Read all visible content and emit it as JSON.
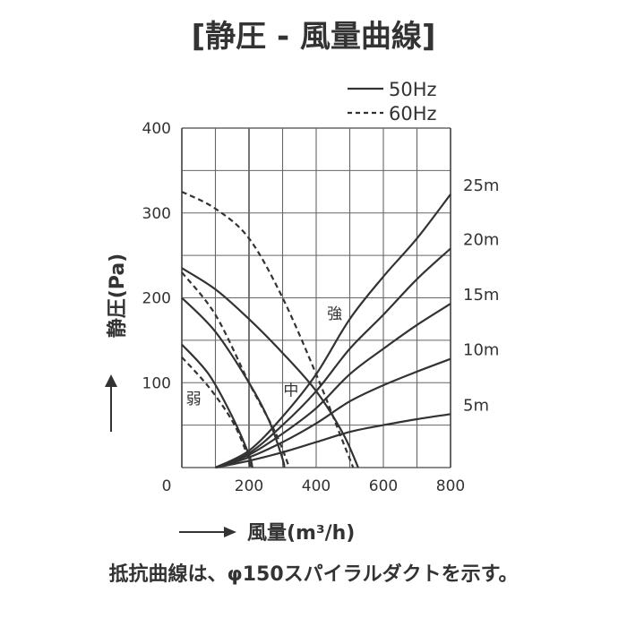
{
  "chart_data": {
    "type": "line",
    "title": "[静圧 - 風量曲線]",
    "xlabel": "風量(m³/h)",
    "ylabel": "静圧(Pa)",
    "xlim": [
      0,
      800
    ],
    "ylim": [
      0,
      400
    ],
    "x_ticks": [
      "0",
      "200",
      "400",
      "600",
      "800"
    ],
    "y_ticks": [
      "100",
      "200",
      "300",
      "400"
    ],
    "grid": true,
    "legend": {
      "position": "top-right",
      "entries": [
        {
          "label": "50Hz",
          "style": "solid"
        },
        {
          "label": "60Hz",
          "style": "dashed"
        }
      ]
    },
    "series": [
      {
        "name": "50Hz",
        "label": "強",
        "style": "solid",
        "points": [
          [
            0,
            235
          ],
          [
            100,
            210
          ],
          [
            200,
            175
          ],
          [
            300,
            135
          ],
          [
            400,
            90
          ],
          [
            480,
            40
          ],
          [
            525,
            0
          ]
        ]
      },
      {
        "name": "50Hz",
        "label": "中",
        "style": "solid",
        "points": [
          [
            0,
            200
          ],
          [
            100,
            160
          ],
          [
            200,
            100
          ],
          [
            260,
            55
          ],
          [
            300,
            10
          ],
          [
            305,
            0
          ]
        ]
      },
      {
        "name": "50Hz",
        "label": "弱",
        "style": "solid",
        "points": [
          [
            0,
            145
          ],
          [
            80,
            110
          ],
          [
            150,
            60
          ],
          [
            200,
            15
          ],
          [
            210,
            0
          ]
        ]
      },
      {
        "name": "60Hz",
        "label": "強",
        "style": "dashed",
        "points": [
          [
            0,
            325
          ],
          [
            100,
            305
          ],
          [
            200,
            270
          ],
          [
            300,
            200
          ],
          [
            400,
            110
          ],
          [
            470,
            40
          ],
          [
            510,
            0
          ]
        ]
      },
      {
        "name": "60Hz",
        "label": "中",
        "style": "dashed",
        "points": [
          [
            0,
            230
          ],
          [
            100,
            180
          ],
          [
            200,
            100
          ],
          [
            280,
            40
          ],
          [
            320,
            0
          ]
        ]
      },
      {
        "name": "60Hz",
        "label": "弱",
        "style": "dashed",
        "points": [
          [
            0,
            130
          ],
          [
            80,
            95
          ],
          [
            150,
            55
          ],
          [
            190,
            20
          ],
          [
            205,
            0
          ]
        ]
      }
    ],
    "resistance_curves": [
      {
        "label": "25m",
        "points": [
          [
            100,
            0
          ],
          [
            200,
            20
          ],
          [
            300,
            60
          ],
          [
            400,
            110
          ],
          [
            500,
            175
          ],
          [
            600,
            225
          ],
          [
            700,
            270
          ],
          [
            800,
            322
          ]
        ]
      },
      {
        "label": "20m",
        "points": [
          [
            100,
            0
          ],
          [
            200,
            17
          ],
          [
            300,
            50
          ],
          [
            400,
            90
          ],
          [
            500,
            140
          ],
          [
            600,
            180
          ],
          [
            700,
            222
          ],
          [
            800,
            258
          ]
        ]
      },
      {
        "label": "15m",
        "points": [
          [
            100,
            0
          ],
          [
            200,
            15
          ],
          [
            300,
            40
          ],
          [
            400,
            70
          ],
          [
            500,
            110
          ],
          [
            600,
            140
          ],
          [
            700,
            168
          ],
          [
            800,
            193
          ]
        ]
      },
      {
        "label": "10m",
        "points": [
          [
            100,
            0
          ],
          [
            200,
            12
          ],
          [
            300,
            30
          ],
          [
            400,
            52
          ],
          [
            500,
            78
          ],
          [
            600,
            97
          ],
          [
            700,
            113
          ],
          [
            800,
            128
          ]
        ]
      },
      {
        "label": "5m",
        "points": [
          [
            100,
            0
          ],
          [
            200,
            8
          ],
          [
            300,
            18
          ],
          [
            400,
            30
          ],
          [
            500,
            42
          ],
          [
            600,
            50
          ],
          [
            700,
            57
          ],
          [
            800,
            63
          ]
        ]
      }
    ],
    "level_labels": [
      {
        "label": "強",
        "x": 455,
        "y": 175
      },
      {
        "label": "中",
        "x": 325,
        "y": 85
      },
      {
        "label": "弱",
        "x": 35,
        "y": 75
      }
    ],
    "note": "抵抗曲線は、φ150スパイラルダクトを示す。"
  }
}
